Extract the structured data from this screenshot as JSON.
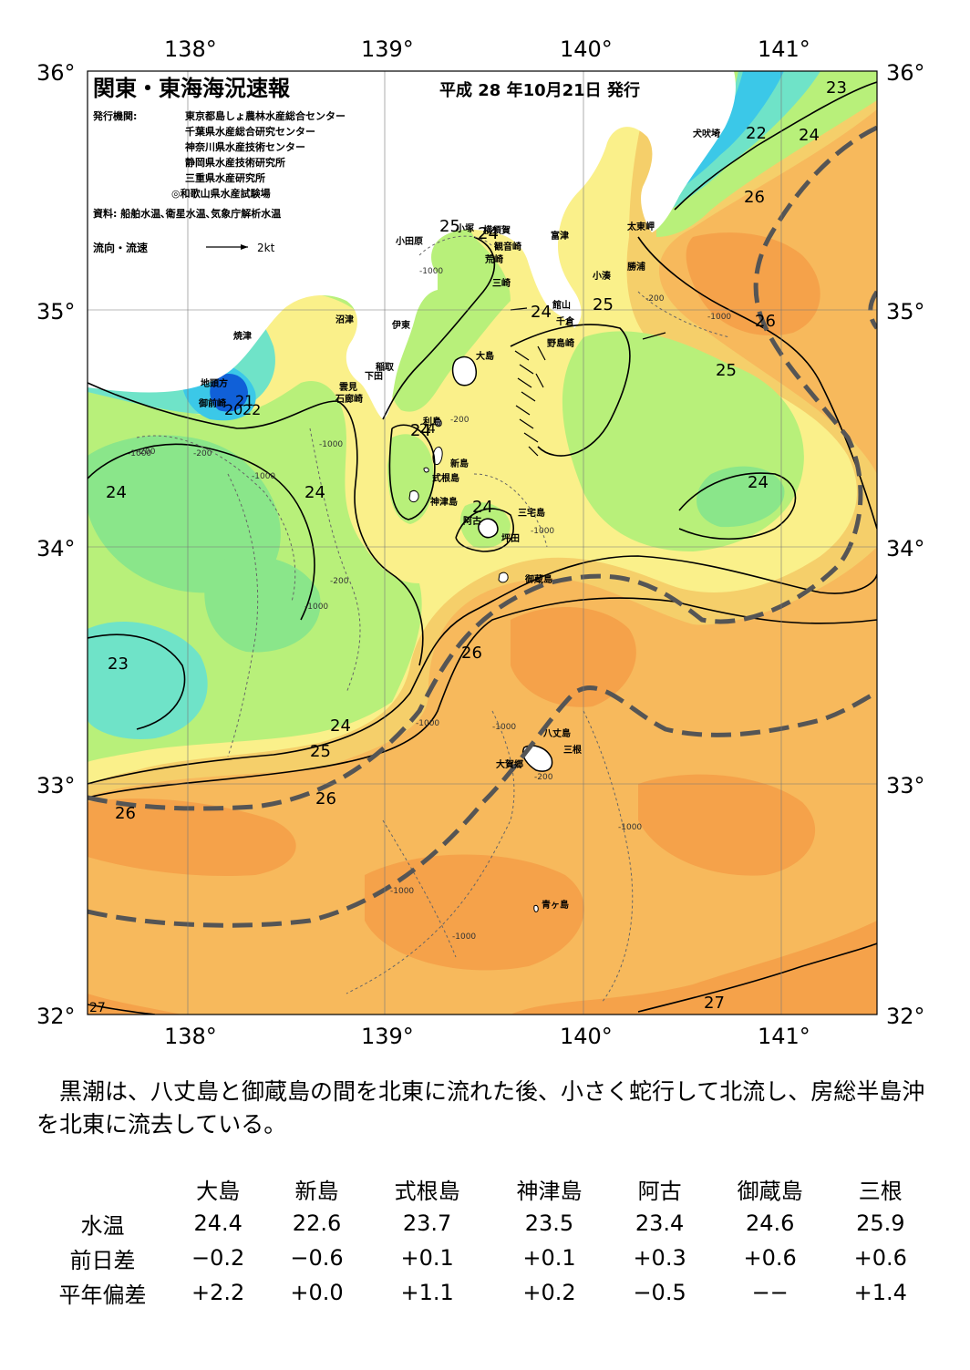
{
  "map": {
    "title": "関東・東海海況速報",
    "issue_date": "平成 28 年10月21日 発行",
    "issuer_label": "発行機関:",
    "issuers": [
      "東京都島しょ農林水産総合センター",
      "千葉県水産総合研究センター",
      "神奈川県水産技術センター",
      "静岡県水産技術研究所",
      "三重県水産研究所",
      "◎和歌山県水産試験場"
    ],
    "source": "資料: 船舶水温､衛星水温､気象庁解析水温",
    "current_legend": "流向・流速",
    "current_scale": "2kt",
    "lon_labels": [
      "138°",
      "139°",
      "140°",
      "141°"
    ],
    "lat_labels": [
      "36°",
      "35°",
      "34°",
      "33°",
      "32°"
    ],
    "isotherm_labels": [
      "23",
      "22",
      "24",
      "26",
      "26",
      "25",
      "24",
      "24",
      "25",
      "24",
      "24",
      "24",
      "24",
      "24",
      "23",
      "24",
      "25",
      "26",
      "26",
      "27",
      "27",
      "26",
      "20",
      "21",
      "22",
      "25",
      "24"
    ],
    "depth_labels": [
      "-200",
      "-1000",
      "-1000",
      "-200",
      "-1000",
      "-1000",
      "-200",
      "-1000",
      "-1000",
      "-200",
      "-200",
      "-1000",
      "-1000",
      "-1000",
      "-1000",
      "-200",
      "-1000",
      "-1000"
    ],
    "place_names": [
      "犬吠埼",
      "太東岬",
      "勝浦",
      "小湊",
      "館山",
      "千倉",
      "野島崎",
      "富津",
      "観音崎",
      "横須賀",
      "荒崎",
      "三崎",
      "小田原",
      "小塚",
      "沼津",
      "伊東",
      "焼津",
      "稲取",
      "下田",
      "雲見",
      "石廊崎",
      "地頭方",
      "御前崎",
      "大島",
      "利島",
      "新島",
      "式根島",
      "神津島",
      "三宅島",
      "阿古",
      "坪田",
      "御蔵島",
      "八丈島",
      "三根",
      "大賀郷",
      "青ヶ島"
    ]
  },
  "summary": "　黒潮は、八丈島と御蔵島の間を北東に流れた後、小さく蛇行して北流し、房総半島沖を北東に流去している。",
  "table": {
    "columns": [
      "大島",
      "新島",
      "式根島",
      "神津島",
      "阿古",
      "御蔵島",
      "三根"
    ],
    "rows": [
      {
        "label": "水温",
        "values": [
          "24.4",
          "22.6",
          "23.7",
          "23.5",
          "23.4",
          "24.6",
          "25.9"
        ]
      },
      {
        "label": "前日差",
        "values": [
          "−0.2",
          "−0.6",
          "+0.1",
          "+0.1",
          "+0.3",
          "+0.6",
          "+0.6"
        ]
      },
      {
        "label": "平年偏差",
        "values": [
          "+2.2",
          "+0.0",
          "+1.1",
          "+0.2",
          "−0.5",
          "−−",
          "+1.4"
        ]
      }
    ]
  },
  "colors": {
    "sea_27": "#f5a24a",
    "sea_26": "#f7b95c",
    "sea_25": "#f5cf6a",
    "sea_24_5": "#faf08a",
    "sea_24": "#b8f07a",
    "sea_23": "#8ae68a",
    "sea_22": "#6fe3c8",
    "sea_21": "#3bc8e8",
    "sea_20": "#1060d8",
    "land": "#ffffff",
    "kuroshio_axis": "#555555"
  }
}
